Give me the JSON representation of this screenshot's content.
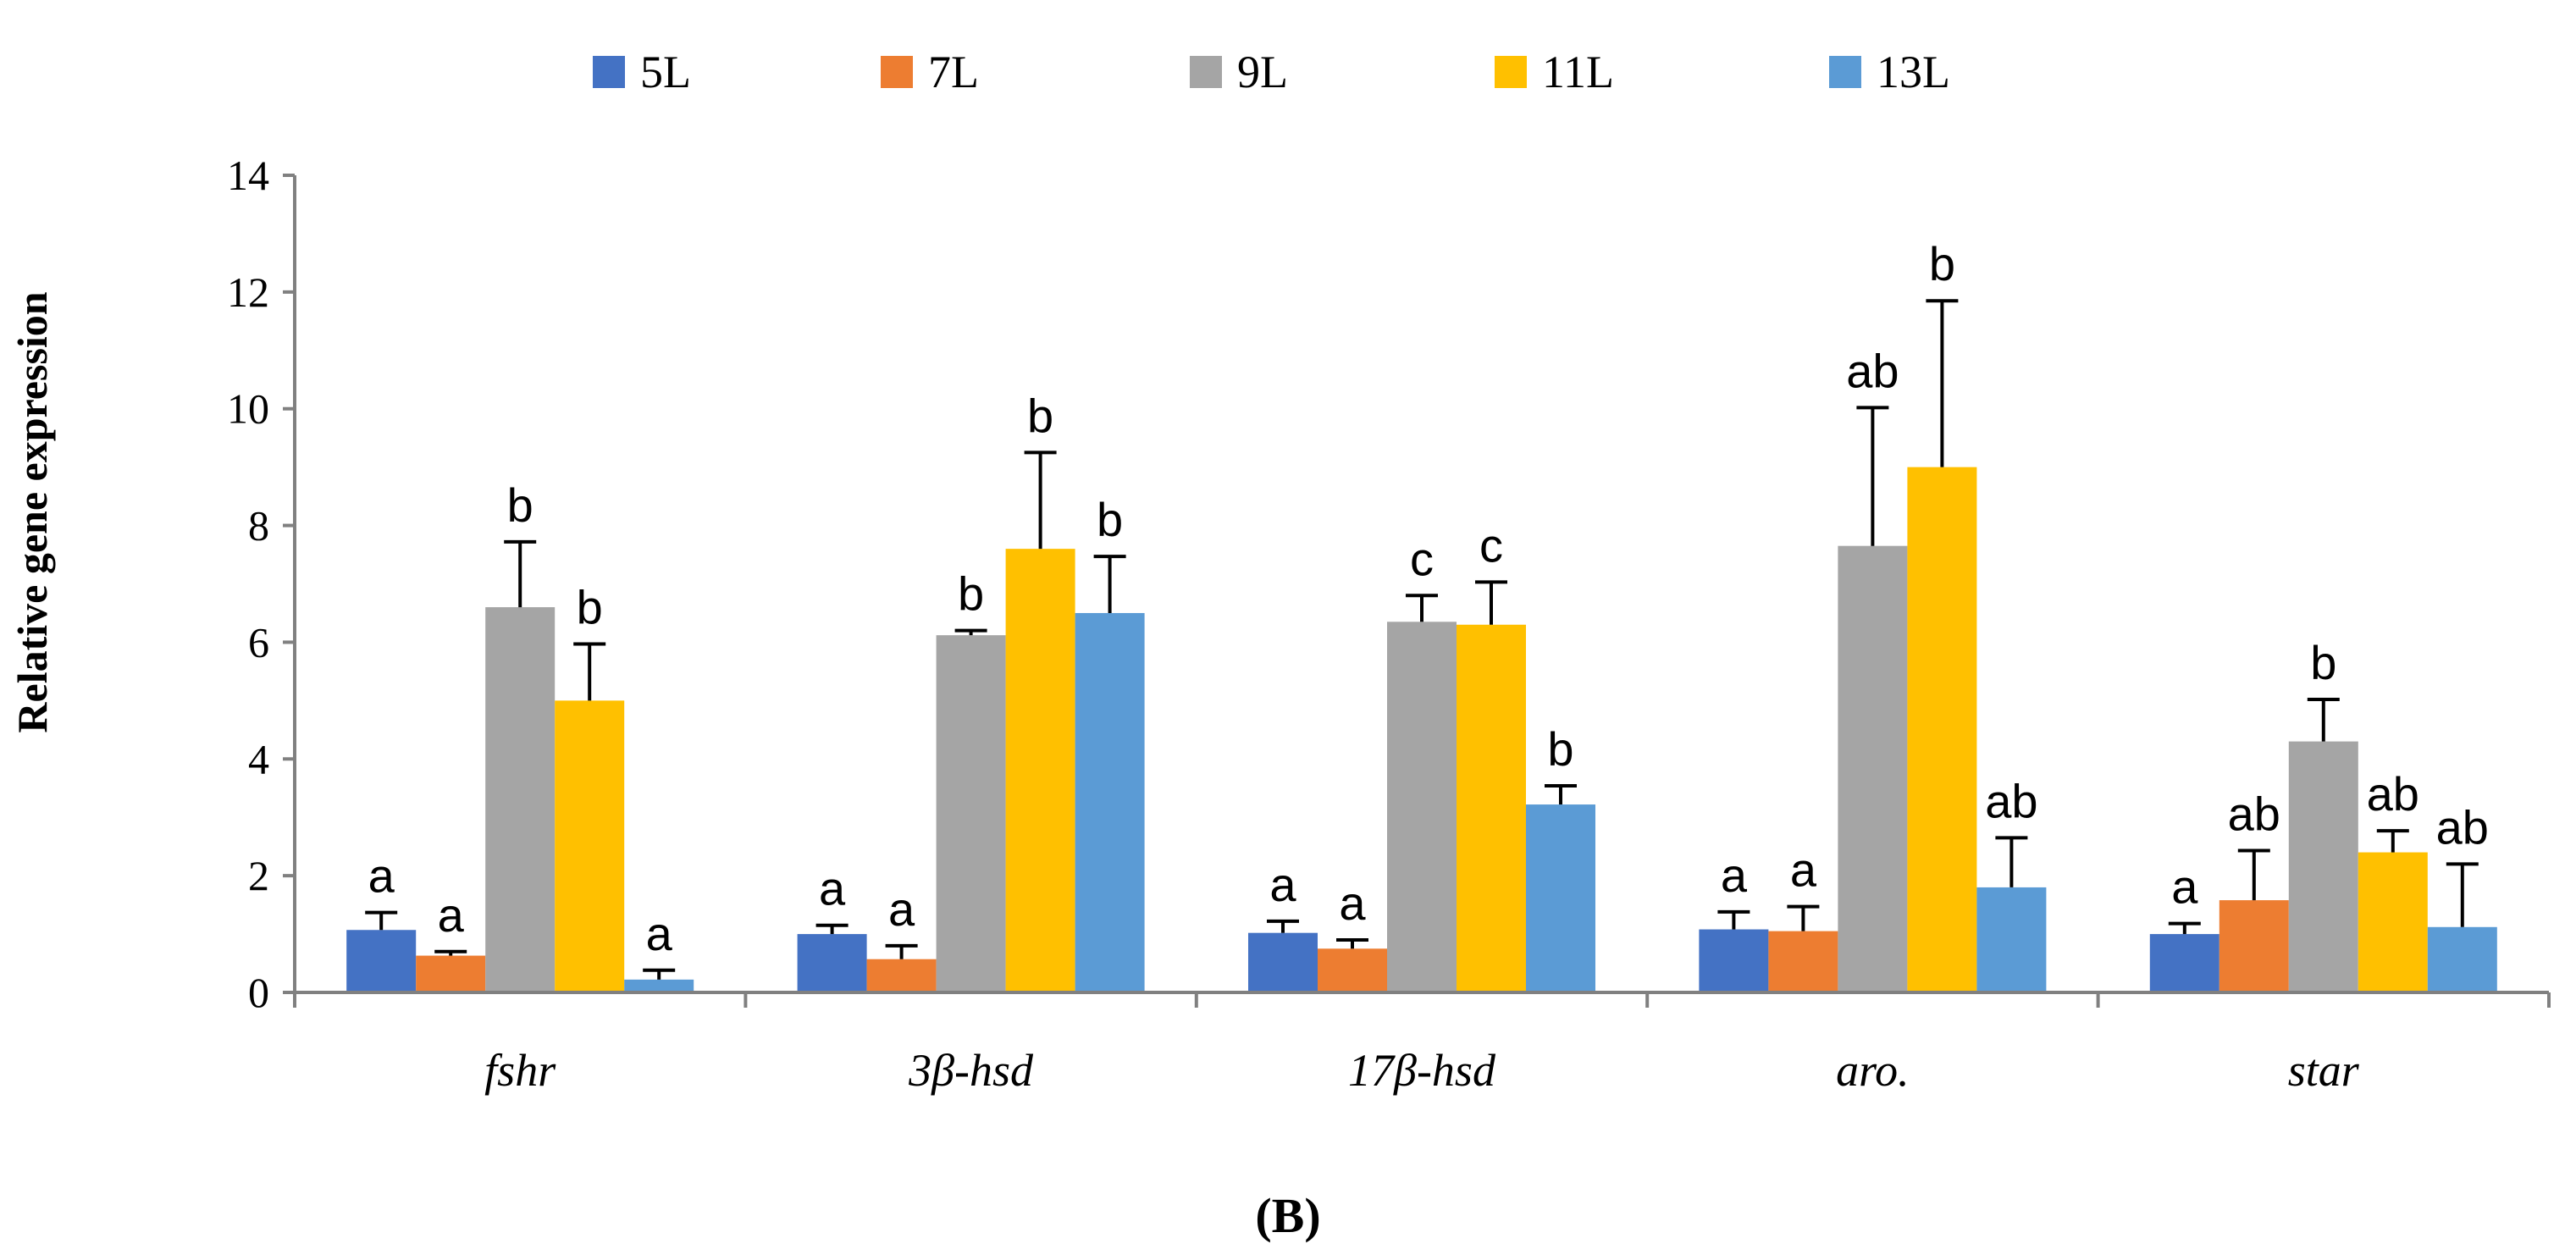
{
  "chart_data": {
    "type": "bar",
    "title": "",
    "panel_label": "(B)",
    "xlabel": "",
    "ylabel": "Relative gene expression",
    "ylim": [
      0,
      14
    ],
    "yticks": [
      0,
      2,
      4,
      6,
      8,
      10,
      12,
      14
    ],
    "ytick_labels": [
      "0",
      "2",
      "4",
      "6",
      "8",
      "10",
      "12",
      "14"
    ],
    "grid": false,
    "legend_position": "top",
    "categories": [
      "fshr",
      "3β-hsd",
      "17β-hsd",
      "aro.",
      "star"
    ],
    "series": [
      {
        "name": "5L",
        "color": "#4472C4",
        "values": [
          1.07,
          1.0,
          1.02,
          1.08,
          1.0
        ],
        "errors": [
          0.3,
          0.15,
          0.2,
          0.3,
          0.18
        ],
        "letters": [
          "a",
          "a",
          "a",
          "a",
          "a"
        ]
      },
      {
        "name": "7L",
        "color": "#ED7D31",
        "values": [
          0.63,
          0.57,
          0.75,
          1.05,
          1.58
        ],
        "errors": [
          0.07,
          0.23,
          0.15,
          0.42,
          0.85
        ],
        "letters": [
          "a",
          "a",
          "a",
          "a",
          "ab"
        ]
      },
      {
        "name": "9L",
        "color": "#A5A5A5",
        "values": [
          6.6,
          6.12,
          6.35,
          7.65,
          4.3
        ],
        "errors": [
          1.12,
          0.08,
          0.45,
          2.37,
          0.72
        ],
        "letters": [
          "b",
          "b",
          "c",
          "ab",
          "b"
        ]
      },
      {
        "name": "11L",
        "color": "#FFC000",
        "values": [
          5.0,
          7.6,
          6.3,
          9.0,
          2.4
        ],
        "errors": [
          0.97,
          1.65,
          0.73,
          2.85,
          0.37
        ],
        "letters": [
          "b",
          "b",
          "c",
          "b",
          "ab"
        ]
      },
      {
        "name": "13L",
        "color": "#5B9BD5",
        "values": [
          0.22,
          6.5,
          3.22,
          1.8,
          1.12
        ],
        "errors": [
          0.16,
          0.97,
          0.32,
          0.85,
          1.08
        ],
        "letters": [
          "a",
          "b",
          "b",
          "ab",
          "ab"
        ]
      }
    ]
  }
}
